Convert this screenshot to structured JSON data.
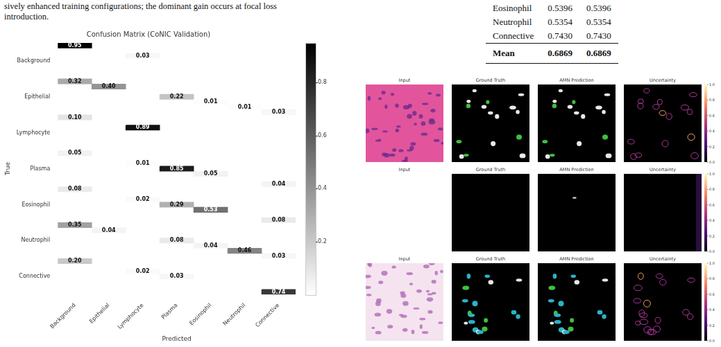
{
  "caption": {
    "lines": [
      "sively enhanced training configurations; the dominant gain occurs at focal loss",
      "introduction."
    ]
  },
  "table": {
    "rows": [
      [
        "Eosinophil",
        "0.5396",
        "0.5396"
      ],
      [
        "Neutrophil",
        "0.5354",
        "0.5354"
      ],
      [
        "Connective",
        "0.7430",
        "0.7430"
      ]
    ],
    "mean": [
      "Mean",
      "0.6869",
      "0.6869"
    ]
  },
  "chart_data": {
    "type": "heatmap",
    "title": "Confusion Matrix (CoNIC Validation)",
    "x_label": "Predicted",
    "y_label": "True",
    "x_categories": [
      "Background",
      "Epithelial",
      "Lymphocyte",
      "Plasma",
      "Eosinophil",
      "Neutrophil",
      "Connective"
    ],
    "y_categories": [
      "Background",
      "Epithelial",
      "Lymphocyte",
      "Plasma",
      "Eosinophil",
      "Neutrophil",
      "Connective"
    ],
    "values": [
      [
        0.95,
        null,
        0.03,
        null,
        null,
        null,
        null
      ],
      [
        0.32,
        0.4,
        null,
        0.22,
        0.01,
        0.01,
        0.03
      ],
      [
        0.1,
        null,
        0.89,
        null,
        null,
        null,
        null
      ],
      [
        0.05,
        null,
        0.01,
        0.85,
        0.05,
        null,
        0.04
      ],
      [
        0.08,
        null,
        0.02,
        0.29,
        0.53,
        null,
        0.08
      ],
      [
        0.35,
        0.04,
        null,
        0.08,
        0.04,
        0.46,
        0.03
      ],
      [
        0.2,
        null,
        0.02,
        0.03,
        null,
        null,
        0.74
      ]
    ],
    "value_labels": [
      [
        "0.95",
        null,
        "0.03",
        null,
        null,
        null,
        null
      ],
      [
        "0.32",
        "0.40",
        null,
        "0.22",
        "0.01",
        "0.01",
        "0.03"
      ],
      [
        "0.10",
        null,
        "0.89",
        null,
        null,
        null,
        null
      ],
      [
        "0.05",
        null,
        "0.01",
        "0.85",
        "0.05",
        null,
        "0.04"
      ],
      [
        "0.08",
        null,
        "0.02",
        "0.29",
        "0.53",
        null,
        "0.08"
      ],
      [
        "0.35",
        "0.04",
        null,
        "0.08",
        "0.04",
        "0.46",
        "0.03"
      ],
      [
        "0.20",
        null,
        "0.02",
        "0.03",
        null,
        null,
        "0.74"
      ]
    ],
    "data_labels": true,
    "grid": false,
    "colorbar": {
      "range": [
        0,
        0.95
      ],
      "ticks": [
        0.2,
        0.4,
        0.6,
        0.8
      ]
    }
  },
  "figure": {
    "rows": [
      [
        "Input",
        "Ground Truth",
        "AMN Prediction",
        "Uncertainty"
      ],
      [
        "Input",
        "Ground Truth",
        "AMN Prediction",
        "Uncertainty"
      ],
      [
        "Input",
        "Ground Truth",
        "AMN Prediction",
        "Uncertainty"
      ]
    ],
    "colorbar": {
      "range": [
        0,
        1
      ],
      "ticks": [
        {
          "value": 0,
          "label": "0.0"
        },
        {
          "value": 0.2,
          "label": "0.2"
        },
        {
          "value": 0.4,
          "label": "0.4"
        },
        {
          "value": 0.6,
          "label": "0.6"
        },
        {
          "value": 0.8,
          "label": "0.8"
        },
        {
          "value": 1,
          "label": "1.0"
        }
      ]
    }
  }
}
